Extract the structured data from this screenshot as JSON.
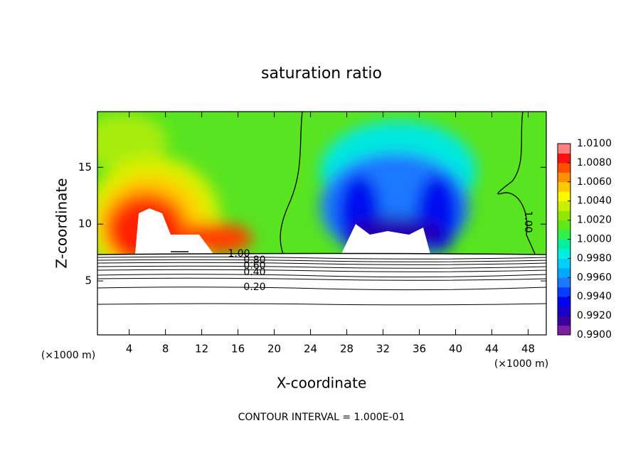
{
  "chart_data": {
    "type": "contour",
    "title": "saturation ratio",
    "x_label": "X-coordinate",
    "y_label": "Z-coordinate",
    "x_unit": "(×1000 m)",
    "xlim": [
      0.5,
      50
    ],
    "ylim": [
      0.25,
      19.9
    ],
    "xticks": [
      4,
      8,
      12,
      16,
      20,
      24,
      28,
      32,
      36,
      40,
      44,
      48
    ],
    "yticks": [
      5,
      10,
      15
    ],
    "colorbar": {
      "lim": [
        0.99,
        1.01
      ],
      "ticks": [
        {
          "value": 0.99,
          "label": "0.9900"
        },
        {
          "value": 0.992,
          "label": "0.9920"
        },
        {
          "value": 0.994,
          "label": "0.9940"
        },
        {
          "value": 0.996,
          "label": "0.9960"
        },
        {
          "value": 0.998,
          "label": "0.9980"
        },
        {
          "value": 1.0,
          "label": "1.0000"
        },
        {
          "value": 1.002,
          "label": "1.0020"
        },
        {
          "value": 1.004,
          "label": "1.0040"
        },
        {
          "value": 1.006,
          "label": "1.0060"
        },
        {
          "value": 1.008,
          "label": "1.0080"
        },
        {
          "value": 1.01,
          "label": "1.0100"
        }
      ],
      "colors": [
        "#7a1fa0",
        "#3a00a0",
        "#1a00c8",
        "#0000f0",
        "#0a3cff",
        "#1e78ff",
        "#00a8ff",
        "#00d0f8",
        "#00f0e0",
        "#00f0a0",
        "#30f050",
        "#60e818",
        "#90e800",
        "#c8f000",
        "#f8f800",
        "#ffc800",
        "#ff9000",
        "#ff5000",
        "#ff1010",
        "#ff8080"
      ]
    },
    "contour_labels": [
      "1.00",
      "0.80",
      "0.60",
      "0.40",
      "0.20",
      "1.00"
    ],
    "footer": "CONTOUR INTERVAL = 1.000E-01"
  }
}
